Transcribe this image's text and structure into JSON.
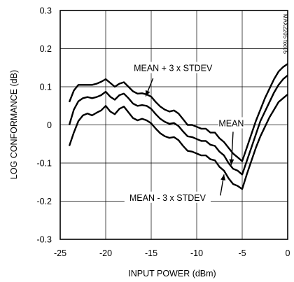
{
  "chart_data": {
    "type": "line",
    "title": "",
    "xlabel": "INPUT POWER (dBm)",
    "ylabel": "LOG CONFORMANCE (dB)",
    "xlim": [
      -25,
      0
    ],
    "ylim": [
      -0.3,
      0.3
    ],
    "x_ticks": [
      -25,
      -20,
      -15,
      -10,
      -5,
      0
    ],
    "x_tick_labels": [
      "-25",
      "-20",
      "-15",
      "-10",
      "-5",
      "0"
    ],
    "y_ticks": [
      -0.3,
      -0.2,
      -0.1,
      0,
      0.1,
      0.2,
      0.3
    ],
    "y_tick_labels": [
      "-0.3",
      "-0.2",
      "-0.1",
      "0",
      "0.1",
      "0.2",
      "0.3"
    ],
    "grid": true,
    "part_number": "MAX2205 toc05",
    "series": [
      {
        "name": "MEAN + 3 x STDEV",
        "x": [
          -24,
          -23.5,
          -23,
          -22.5,
          -22,
          -21.5,
          -21,
          -20.5,
          -20,
          -19.5,
          -19,
          -18.5,
          -18,
          -17.5,
          -17,
          -16.5,
          -16,
          -15.5,
          -15,
          -14.5,
          -14,
          -13.5,
          -13,
          -12.5,
          -12,
          -11.5,
          -11,
          -10.5,
          -10,
          -9.5,
          -9,
          -8.5,
          -8,
          -7.5,
          -7,
          -6.5,
          -6,
          -5.5,
          -5,
          -4.5,
          -4,
          -3.5,
          -3,
          -2.5,
          -2,
          -1.5,
          -1,
          -0.5,
          0
        ],
        "y": [
          0.06,
          0.09,
          0.105,
          0.105,
          0.105,
          0.105,
          0.108,
          0.113,
          0.12,
          0.11,
          0.1,
          0.108,
          0.112,
          0.1,
          0.088,
          0.082,
          0.083,
          0.08,
          0.074,
          0.06,
          0.048,
          0.04,
          0.035,
          0.038,
          0.03,
          0.015,
          0.0,
          0.0,
          -0.005,
          -0.01,
          -0.01,
          -0.02,
          -0.02,
          -0.035,
          -0.045,
          -0.06,
          -0.075,
          -0.085,
          -0.095,
          -0.06,
          -0.025,
          0.01,
          0.04,
          0.07,
          0.095,
          0.12,
          0.14,
          0.152,
          0.16
        ]
      },
      {
        "name": "MEAN",
        "x": [
          -24,
          -23.5,
          -23,
          -22.5,
          -22,
          -21.5,
          -21,
          -20.5,
          -20,
          -19.5,
          -19,
          -18.5,
          -18,
          -17.5,
          -17,
          -16.5,
          -16,
          -15.5,
          -15,
          -14.5,
          -14,
          -13.5,
          -13,
          -12.5,
          -12,
          -11.5,
          -11,
          -10.5,
          -10,
          -9.5,
          -9,
          -8.5,
          -8,
          -7.5,
          -7,
          -6.5,
          -6,
          -5.5,
          -5,
          -4.5,
          -4,
          -3.5,
          -3,
          -2.5,
          -2,
          -1.5,
          -1,
          -0.5,
          0
        ],
        "y": [
          0.0,
          0.04,
          0.062,
          0.07,
          0.073,
          0.07,
          0.073,
          0.078,
          0.087,
          0.074,
          0.066,
          0.078,
          0.082,
          0.07,
          0.056,
          0.05,
          0.052,
          0.05,
          0.042,
          0.028,
          0.016,
          0.008,
          0.003,
          0.005,
          -0.003,
          -0.017,
          -0.03,
          -0.032,
          -0.037,
          -0.042,
          -0.042,
          -0.052,
          -0.055,
          -0.07,
          -0.08,
          -0.1,
          -0.115,
          -0.12,
          -0.13,
          -0.095,
          -0.06,
          -0.025,
          0.01,
          0.035,
          0.06,
          0.085,
          0.105,
          0.12,
          0.13
        ]
      },
      {
        "name": "MEAN - 3 x STDEV",
        "x": [
          -24,
          -23.5,
          -23,
          -22.5,
          -22,
          -21.5,
          -21,
          -20.5,
          -20,
          -19.5,
          -19,
          -18.5,
          -18,
          -17.5,
          -17,
          -16.5,
          -16,
          -15.5,
          -15,
          -14.5,
          -14,
          -13.5,
          -13,
          -12.5,
          -12,
          -11.5,
          -11,
          -10.5,
          -10,
          -9.5,
          -9,
          -8.5,
          -8,
          -7.5,
          -7,
          -6.5,
          -6,
          -5.5,
          -5,
          -4.5,
          -4,
          -3.5,
          -3,
          -2.5,
          -2,
          -1.5,
          -1,
          -0.5,
          0
        ],
        "y": [
          -0.055,
          -0.02,
          0.01,
          0.025,
          0.03,
          0.025,
          0.032,
          0.038,
          0.05,
          0.035,
          0.028,
          0.042,
          0.048,
          0.033,
          0.018,
          0.012,
          0.016,
          0.012,
          0.004,
          -0.01,
          -0.022,
          -0.03,
          -0.034,
          -0.032,
          -0.04,
          -0.055,
          -0.068,
          -0.07,
          -0.075,
          -0.08,
          -0.08,
          -0.09,
          -0.093,
          -0.11,
          -0.12,
          -0.14,
          -0.155,
          -0.16,
          -0.168,
          -0.13,
          -0.095,
          -0.06,
          -0.03,
          -0.005,
          0.02,
          0.04,
          0.06,
          0.07,
          0.08
        ]
      }
    ],
    "annotations": [
      {
        "text": "MEAN + 3 x STDEV",
        "x": -15.5,
        "y": 0.07
      },
      {
        "text": "MEAN",
        "x": -6.2,
        "y": -0.105
      },
      {
        "text": "MEAN - 3 x STDEV",
        "x": -7.2,
        "y": -0.145
      }
    ]
  }
}
